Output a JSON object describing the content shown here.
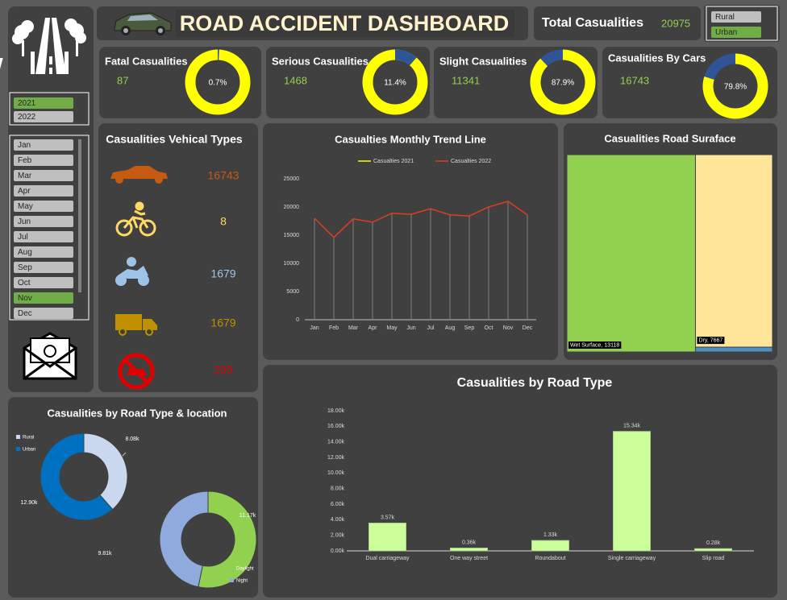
{
  "header": {
    "title": "ROAD ACCIDENT DASHBOARD",
    "total_label": "Total Casualities",
    "total_value": 20975
  },
  "slicers": {
    "location": [
      {
        "label": "Rural",
        "color": "#bfbfbf"
      },
      {
        "label": "Urban",
        "color": "#70ad47"
      }
    ],
    "years": [
      {
        "label": "2021",
        "color": "#70ad47"
      },
      {
        "label": "2022",
        "color": "#bfbfbf"
      }
    ],
    "months": [
      {
        "label": "Jan",
        "color": "#bfbfbf"
      },
      {
        "label": "Feb",
        "color": "#bfbfbf"
      },
      {
        "label": "Mar",
        "color": "#bfbfbf"
      },
      {
        "label": "Apr",
        "color": "#bfbfbf"
      },
      {
        "label": "May",
        "color": "#bfbfbf"
      },
      {
        "label": "Jun",
        "color": "#bfbfbf"
      },
      {
        "label": "Jul",
        "color": "#bfbfbf"
      },
      {
        "label": "Aug",
        "color": "#bfbfbf"
      },
      {
        "label": "Sep",
        "color": "#bfbfbf"
      },
      {
        "label": "Oct",
        "color": "#bfbfbf"
      },
      {
        "label": "Nov",
        "color": "#70ad47"
      },
      {
        "label": "Dec",
        "color": "#bfbfbf"
      }
    ]
  },
  "kpis": [
    {
      "title": "Fatal Casualities",
      "value": 87,
      "percent": 0.7,
      "percent_label": "0.7%",
      "color": "#2f5597",
      "rest_color": "#ffff00"
    },
    {
      "title": "Serious Casualities",
      "value": 1468,
      "percent": 11.4,
      "percent_label": "11.4%",
      "color": "#2f5597",
      "rest_color": "#ffff00"
    },
    {
      "title": "Slight Casualities",
      "value": 11341,
      "percent": 87.9,
      "percent_label": "87.9%",
      "color": "#ffff00",
      "rest_color": "#2f5597"
    },
    {
      "title": "Casualities By Cars",
      "value": 16743,
      "percent": 79.8,
      "percent_label": "79.8%",
      "color": "#ffff00",
      "rest_color": "#2f5597"
    }
  ],
  "vehicle_types": {
    "title": "Casualities Vehical Types",
    "items": [
      {
        "value": 16743,
        "color": "#c55a11"
      },
      {
        "value": 8,
        "color": "#ffd966"
      },
      {
        "value": 1679,
        "color": "#9dc3e6"
      },
      {
        "value": 1679,
        "color": "#bf9000"
      },
      {
        "value": 205,
        "color": "#e00000"
      }
    ]
  },
  "chart_data": [
    {
      "type": "line",
      "title": "Casualties Monthly Trend Line",
      "categories": [
        "Jan",
        "Feb",
        "Mar",
        "Apr",
        "May",
        "Jun",
        "Jul",
        "Aug",
        "Sep",
        "Oct",
        "Nov",
        "Dec"
      ],
      "series": [
        {
          "name": "Casualties 2021",
          "color": "#ffff00",
          "values": [
            null,
            null,
            null,
            null,
            null,
            null,
            null,
            null,
            null,
            null,
            null,
            null
          ]
        },
        {
          "name": "Casualties 2022",
          "color": "#e03c1e",
          "values": [
            18000,
            14600,
            17900,
            17300,
            18900,
            18700,
            19700,
            18600,
            18400,
            20000,
            21000,
            18600
          ]
        }
      ],
      "ylim": [
        0,
        25000
      ],
      "yticks": [
        0,
        5000,
        10000,
        15000,
        20000,
        25000
      ],
      "grid": false
    },
    {
      "type": "treemap",
      "title": "Casualities Road Suraface",
      "values": [
        13118,
        7667,
        190
      ],
      "value_labels": [
        "Wet Surface, 13118",
        "Dry, 7667",
        null
      ],
      "colors": [
        "#92d050",
        "#ffe699",
        "#4a90c2"
      ]
    },
    {
      "type": "bar",
      "title": "Casualities by Road Type",
      "categories": [
        "Dual carriageway",
        "One way street",
        "Roundabout",
        "Single carriageway",
        "Slip road"
      ],
      "values": [
        3570,
        360,
        1330,
        15340,
        280
      ],
      "value_labels": [
        "3.57k",
        "0.36k",
        "1.33k",
        "15.34k",
        "0.28k"
      ],
      "color": "#ccff99",
      "ylim": [
        0,
        18000
      ],
      "yticks": [
        {
          "value": 0,
          "label": "0.00k"
        },
        {
          "value": 2000,
          "label": "2.00k"
        },
        {
          "value": 4000,
          "label": "4.00k"
        },
        {
          "value": 6000,
          "label": "6.00k"
        },
        {
          "value": 8000,
          "label": "8.00k"
        },
        {
          "value": 10000,
          "label": "10.00k"
        },
        {
          "value": 12000,
          "label": "12.00k"
        },
        {
          "value": 14000,
          "label": "14.00k"
        },
        {
          "value": 16000,
          "label": "16.00k"
        },
        {
          "value": 18000,
          "label": "18.00k"
        }
      ]
    },
    {
      "type": "donut",
      "title": "Casualities by Road Type & location",
      "rings": [
        {
          "categories": [
            "Rural",
            "Urban"
          ],
          "values": [
            8080,
            12900
          ],
          "value_labels": [
            "8.08k",
            "12.90k"
          ],
          "colors": [
            "#c9d7ef",
            "#0070c0"
          ]
        },
        {
          "categories": [
            "Daylight",
            "Night"
          ],
          "values": [
            11170,
            9810
          ],
          "value_labels": [
            "11.17k",
            "9.81k"
          ],
          "colors": [
            "#92d050",
            "#8faadc"
          ]
        }
      ]
    }
  ]
}
